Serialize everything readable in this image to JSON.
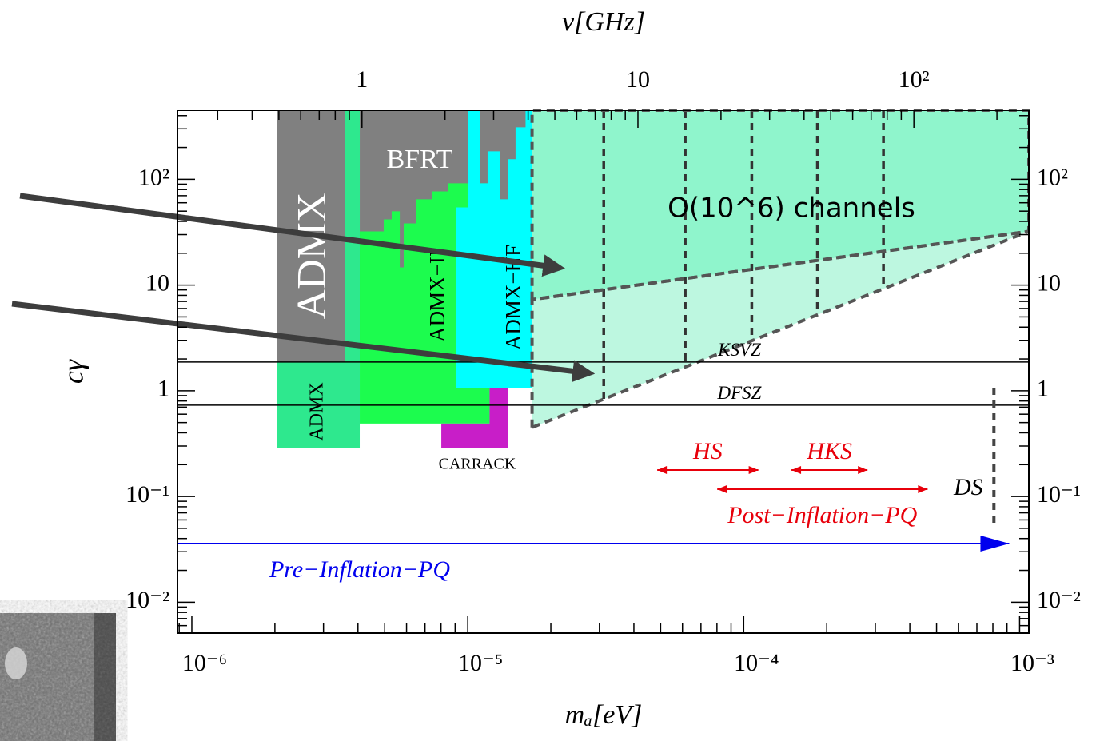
{
  "chart_data": {
    "type": "exclusion",
    "x_label": "mₐ[eV]",
    "x2_label": "ν[GHz]",
    "y_label": "cγ",
    "xscale": "log",
    "yscale": "log",
    "xlim": [
      8.87e-07,
      0.00108
    ],
    "xticks": [
      {
        "value": 1e-06,
        "label": "10⁻⁶"
      },
      {
        "value": 1e-05,
        "label": "10⁻⁵"
      },
      {
        "value": 0.0001,
        "label": "10⁻⁴"
      },
      {
        "value": 0.001,
        "label": "10⁻³"
      }
    ],
    "xminor": [
      9e-07,
      2e-06,
      3e-06,
      4e-06,
      5e-06,
      6e-06,
      7e-06,
      8e-06,
      9e-06,
      2e-05,
      3e-05,
      4e-05,
      5e-05,
      6e-05,
      7e-05,
      8e-05,
      9e-05,
      0.0002,
      0.0003,
      0.0004,
      0.0005,
      0.0006,
      0.0007,
      0.0008,
      0.0009
    ],
    "x2lim": [
      0.2145,
      261
    ],
    "x2ticks": [
      1,
      10,
      {
        "value": 100,
        "label": "10²"
      }
    ],
    "x2minor": [
      0.3,
      0.4,
      0.5,
      0.6,
      0.7,
      0.8,
      0.9,
      2,
      3,
      4,
      5,
      6,
      7,
      8,
      9,
      20,
      30,
      40,
      50,
      60,
      70,
      80,
      90,
      200
    ],
    "ylim": [
      0.0051,
      450
    ],
    "yticks": [
      {
        "value": 0.01,
        "label": "10⁻²"
      },
      {
        "value": 0.1,
        "label": "10⁻¹"
      },
      1,
      10,
      {
        "value": 100,
        "label": "10²"
      }
    ],
    "yminor": [
      0.006,
      0.007,
      0.008,
      0.009,
      0.02,
      0.03,
      0.04,
      0.05,
      0.06,
      0.07,
      0.08,
      0.09,
      0.2,
      0.3,
      0.4,
      0.5,
      0.6,
      0.7,
      0.8,
      0.9,
      2,
      3,
      4,
      5,
      6,
      7,
      8,
      9,
      20,
      30,
      40,
      50,
      60,
      70,
      80,
      90,
      200,
      300,
      400
    ],
    "regions": [
      {
        "name": "ADMX",
        "color": "#808080",
        "points": [
          [
            2.03e-06,
            1.87
          ],
          [
            3.6e-06,
            1.87
          ],
          [
            3.6e-06,
            450
          ],
          [
            2.03e-06,
            450
          ]
        ]
      },
      {
        "name": "BFRT",
        "color": "#808080",
        "points": [
          [
            4.06e-06,
            1.87
          ],
          [
            1.71e-05,
            1.87
          ],
          [
            1.71e-05,
            450
          ],
          [
            4.06e-06,
            450
          ]
        ]
      },
      {
        "name": "ADMX",
        "color": "#2ee88e",
        "points": [
          [
            2.03e-06,
            0.29
          ],
          [
            4.06e-06,
            0.29
          ],
          [
            4.06e-06,
            450
          ],
          [
            3.6e-06,
            450
          ],
          [
            3.6e-06,
            1.87
          ],
          [
            2.03e-06,
            1.87
          ]
        ]
      },
      {
        "name": "ADMX−II",
        "color": "#1cfc4e",
        "points": [
          [
            4.06e-06,
            0.49
          ],
          [
            4.06e-06,
            32.2
          ],
          [
            4.96e-06,
            32.2
          ],
          [
            4.96e-06,
            41.8
          ],
          [
            5.3e-06,
            41.8
          ],
          [
            5.3e-06,
            49.8
          ],
          [
            5.67e-06,
            49.8
          ],
          [
            5.67e-06,
            14.7
          ],
          [
            5.86e-06,
            14.7
          ],
          [
            5.86e-06,
            38.3
          ],
          [
            6.48e-06,
            38.3
          ],
          [
            6.48e-06,
            64.7
          ],
          [
            7.41e-06,
            64.7
          ],
          [
            7.41e-06,
            76.9
          ],
          [
            8.46e-06,
            76.9
          ],
          [
            8.46e-06,
            91.7
          ],
          [
            1.2e-05,
            91.7
          ],
          [
            1.2e-05,
            0.49
          ]
        ]
      },
      {
        "name": "CARRACK",
        "color": "#c81ec8",
        "points": [
          [
            8.02e-06,
            0.29
          ],
          [
            1.4e-05,
            0.29
          ],
          [
            1.4e-05,
            1.07
          ],
          [
            1.2e-05,
            1.07
          ],
          [
            1.2e-05,
            0.49
          ],
          [
            8.02e-06,
            0.49
          ]
        ]
      },
      {
        "name": "ADMX−HF",
        "color": "#00ffff",
        "points": [
          [
            9.05e-06,
            1.07
          ],
          [
            9.05e-06,
            54.3
          ],
          [
            1e-05,
            54.3
          ],
          [
            1e-05,
            450
          ],
          [
            1.105e-05,
            450
          ],
          [
            1.105e-05,
            91.7
          ],
          [
            1.18e-05,
            91.7
          ],
          [
            1.18e-05,
            184
          ],
          [
            1.31e-05,
            184
          ],
          [
            1.31e-05,
            64.7
          ],
          [
            1.4e-05,
            64.7
          ],
          [
            1.4e-05,
            155
          ],
          [
            1.49e-05,
            155
          ],
          [
            1.49e-05,
            310
          ],
          [
            1.62e-05,
            310
          ],
          [
            1.62e-05,
            450
          ],
          [
            1.71e-05,
            450
          ],
          [
            1.71e-05,
            1.07
          ]
        ]
      },
      {
        "name": "O(10^6) channels",
        "color": "#8ff5cc",
        "dashed": true,
        "points": [
          [
            1.71e-05,
            7.3
          ],
          [
            1.71e-05,
            450
          ],
          [
            0.00108,
            450
          ],
          [
            0.00108,
            32.2
          ]
        ]
      },
      {
        "color": "#bdf7e0",
        "dashed": true,
        "points": [
          [
            1.71e-05,
            0.45
          ],
          [
            1.71e-05,
            7.3
          ],
          [
            0.00108,
            32.2
          ]
        ]
      }
    ],
    "channel_edges": [
      3.11e-05,
      6.14e-05,
      0.000107,
      0.000185,
      0.000321
    ],
    "lines": [
      {
        "name": "KSVZ",
        "value": 1.87
      },
      {
        "name": "DFSZ",
        "value": 0.73
      }
    ],
    "ranges": [
      {
        "name": "HS",
        "color": "#e8000b",
        "x": [
          4.86e-05,
          0.000113
        ]
      },
      {
        "name": "HKS",
        "color": "#e8000b",
        "x": [
          0.000149,
          0.000281
        ]
      },
      {
        "name": "Post−Inflation−PQ",
        "color": "#e8000b",
        "x": [
          8.02e-05,
          0.000464
        ]
      },
      {
        "name": "Pre−Inflation−PQ",
        "color": "#0000ee",
        "x": [
          8.87e-07,
          0.000917
        ]
      }
    ],
    "limit": {
      "name": "DS",
      "x": 0.000807,
      "y": [
        0.051,
        1.07
      ]
    }
  }
}
